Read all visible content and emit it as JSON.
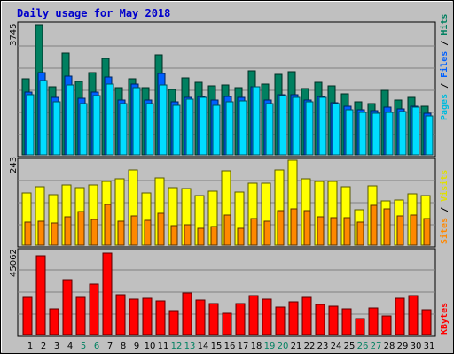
{
  "chart_data": {
    "type": "bar",
    "title": "Daily usage for May 2018",
    "days": [
      "1",
      "2",
      "3",
      "4",
      "5",
      "6",
      "7",
      "8",
      "9",
      "10",
      "11",
      "12",
      "13",
      "14",
      "15",
      "16",
      "17",
      "18",
      "19",
      "20",
      "21",
      "22",
      "23",
      "24",
      "25",
      "26",
      "27",
      "28",
      "29",
      "30",
      "31"
    ],
    "weekend_days": [
      "5",
      "6",
      "12",
      "13",
      "19",
      "20",
      "26",
      "27"
    ],
    "panels": [
      {
        "id": "hits-files-pages",
        "ymax_label": "3745",
        "ymax": 3745,
        "legend": [
          "Pages",
          "Files",
          "Hits"
        ],
        "series": [
          {
            "name": "Hits",
            "color": "#008060",
            "values": [
              2190,
              3745,
              1950,
              2930,
              2110,
              2360,
              2780,
              1940,
              2180,
              1930,
              2880,
              1890,
              2210,
              2100,
              1990,
              2020,
              1940,
              2410,
              2040,
              2310,
              2400,
              1900,
              2090,
              1980,
              1760,
              1520,
              1470,
              1860,
              1590,
              1660,
              1400
            ]
          },
          {
            "name": "Files",
            "color": "#0060ff",
            "values": [
              1810,
              2380,
              1650,
              2280,
              1620,
              1800,
              2250,
              1590,
              2040,
              1580,
              2350,
              1530,
              1660,
              1690,
              1580,
              1690,
              1650,
              1970,
              1570,
              1740,
              1720,
              1570,
              1690,
              1510,
              1410,
              1290,
              1280,
              1380,
              1320,
              1390,
              1200
            ]
          },
          {
            "name": "Pages",
            "color": "#00ddff",
            "values": [
              1740,
              2130,
              1520,
              2020,
              1490,
              1700,
              2040,
              1480,
              1930,
              1490,
              2020,
              1420,
              1610,
              1650,
              1420,
              1540,
              1550,
              1960,
              1490,
              1710,
              1650,
              1540,
              1660,
              1490,
              1310,
              1220,
              1200,
              1230,
              1260,
              1370,
              1110
            ]
          }
        ]
      },
      {
        "id": "visits-sites",
        "ymax_label": "243",
        "ymax": 243,
        "legend": [
          "Sites",
          "Visits"
        ],
        "series": [
          {
            "name": "Visits",
            "color": "#ffff00",
            "values": [
              150,
              168,
              145,
              172,
              165,
              172,
              182,
              190,
              214,
              150,
              192,
              164,
              162,
              142,
              154,
              213,
              153,
              178,
              178,
              214,
              242,
              190,
              182,
              182,
              166,
              102,
              170,
              127,
              128,
              148,
              141
            ]
          },
          {
            "name": "Sites",
            "color": "#ff8800",
            "values": [
              67,
              68,
              63,
              81,
              97,
              73,
              117,
              68,
              84,
              71,
              92,
              55,
              58,
              47,
              52,
              87,
              48,
              76,
              68,
              98,
              104,
              98,
              80,
              79,
              78,
              66,
              114,
              103,
              83,
              85,
              77
            ]
          }
        ]
      },
      {
        "id": "kbytes",
        "ymax_label": "45062",
        "ymax": 45062,
        "legend": [
          "KBytes"
        ],
        "series": [
          {
            "name": "KBytes",
            "color": "#ff0000",
            "values": [
              19800,
              41600,
              13800,
              29300,
              19600,
              26800,
              43300,
              20900,
              18800,
              19200,
              17900,
              12900,
              22200,
              18100,
              16200,
              11200,
              16500,
              20600,
              18600,
              14700,
              17200,
              19500,
              16000,
              14800,
              13500,
              8500,
              14300,
              9900,
              19200,
              20600,
              13300
            ]
          }
        ]
      }
    ]
  }
}
